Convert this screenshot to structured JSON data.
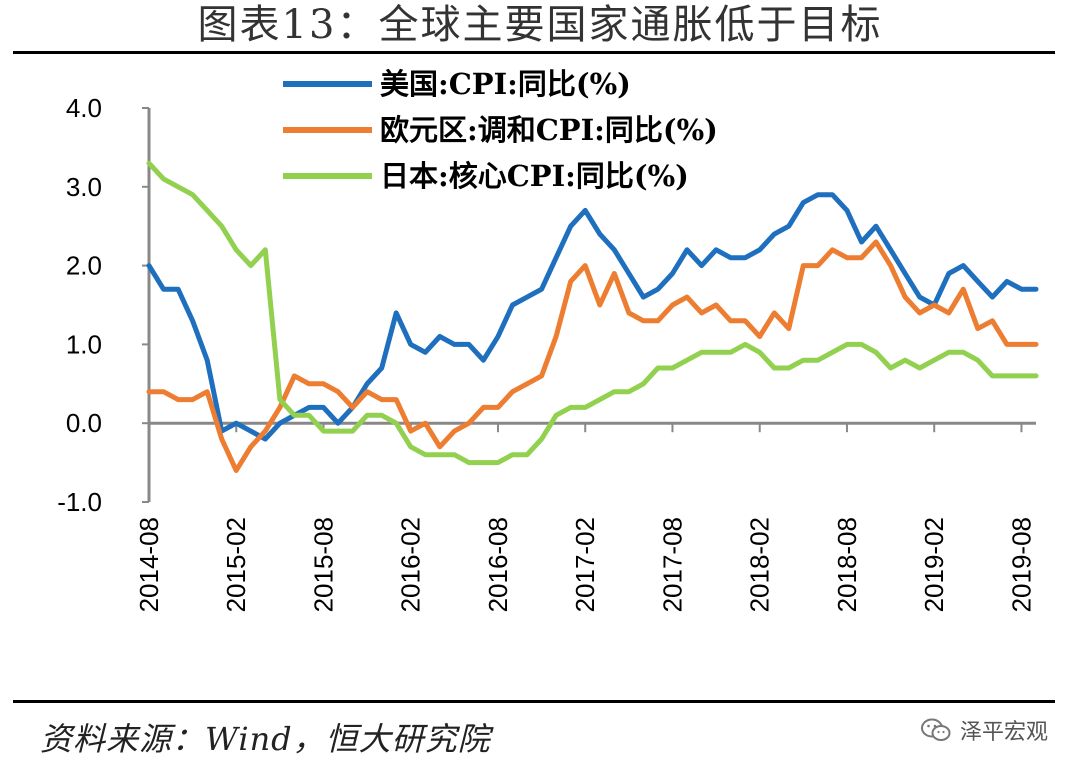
{
  "title": "图表13：全球主要国家通胀低于目标",
  "source": "资料来源：Wind，恒大研究院",
  "watermark": {
    "text": "泽平宏观",
    "icon": "wechat-icon"
  },
  "chart_data": {
    "type": "line",
    "title": "",
    "xlabel": "",
    "ylabel": "",
    "ylim": [
      -1.0,
      4.0
    ],
    "yticks": [
      "4.0",
      "3.0",
      "2.0",
      "1.0",
      "0.0",
      "-1.0"
    ],
    "xticks": [
      "2014-08",
      "2015-02",
      "2015-08",
      "2016-02",
      "2016-08",
      "2017-02",
      "2017-08",
      "2018-02",
      "2018-08",
      "2019-02",
      "2019-08"
    ],
    "legend_position": "top",
    "grid": false,
    "x": [
      "2014-08",
      "2014-09",
      "2014-10",
      "2014-11",
      "2014-12",
      "2015-01",
      "2015-02",
      "2015-03",
      "2015-04",
      "2015-05",
      "2015-06",
      "2015-07",
      "2015-08",
      "2015-09",
      "2015-10",
      "2015-11",
      "2015-12",
      "2016-01",
      "2016-02",
      "2016-03",
      "2016-04",
      "2016-05",
      "2016-06",
      "2016-07",
      "2016-08",
      "2016-09",
      "2016-10",
      "2016-11",
      "2016-12",
      "2017-01",
      "2017-02",
      "2017-03",
      "2017-04",
      "2017-05",
      "2017-06",
      "2017-07",
      "2017-08",
      "2017-09",
      "2017-10",
      "2017-11",
      "2017-12",
      "2018-01",
      "2018-02",
      "2018-03",
      "2018-04",
      "2018-05",
      "2018-06",
      "2018-07",
      "2018-08",
      "2018-09",
      "2018-10",
      "2018-11",
      "2018-12",
      "2019-01",
      "2019-02",
      "2019-03",
      "2019-04",
      "2019-05",
      "2019-06",
      "2019-07",
      "2019-08",
      "2019-09"
    ],
    "series": [
      {
        "name": "美国:CPI:同比(%)",
        "color": "#1f6fbf",
        "values": [
          2.0,
          1.7,
          1.7,
          1.3,
          0.8,
          -0.1,
          0.0,
          -0.1,
          -0.2,
          0.0,
          0.1,
          0.2,
          0.2,
          0.0,
          0.2,
          0.5,
          0.7,
          1.4,
          1.0,
          0.9,
          1.1,
          1.0,
          1.0,
          0.8,
          1.1,
          1.5,
          1.6,
          1.7,
          2.1,
          2.5,
          2.7,
          2.4,
          2.2,
          1.9,
          1.6,
          1.7,
          1.9,
          2.2,
          2.0,
          2.2,
          2.1,
          2.1,
          2.2,
          2.4,
          2.5,
          2.8,
          2.9,
          2.9,
          2.7,
          2.3,
          2.5,
          2.2,
          1.9,
          1.6,
          1.5,
          1.9,
          2.0,
          1.8,
          1.6,
          1.8,
          1.7,
          1.7
        ]
      },
      {
        "name": "欧元区:调和CPI:同比(%)",
        "color": "#ed7d31",
        "values": [
          0.4,
          0.4,
          0.3,
          0.3,
          0.4,
          -0.2,
          -0.6,
          -0.3,
          -0.1,
          0.2,
          0.6,
          0.5,
          0.5,
          0.4,
          0.2,
          0.4,
          0.3,
          0.3,
          -0.1,
          0.0,
          -0.3,
          -0.1,
          0.0,
          0.2,
          0.2,
          0.4,
          0.5,
          0.6,
          1.1,
          1.8,
          2.0,
          1.5,
          1.9,
          1.4,
          1.3,
          1.3,
          1.5,
          1.6,
          1.4,
          1.5,
          1.3,
          1.3,
          1.1,
          1.4,
          1.2,
          2.0,
          2.0,
          2.2,
          2.1,
          2.1,
          2.3,
          2.0,
          1.6,
          1.4,
          1.5,
          1.4,
          1.7,
          1.2,
          1.3,
          1.0,
          1.0,
          1.0
        ]
      },
      {
        "name": "日本:核心CPI:同比(%)",
        "color": "#92d050",
        "values": [
          3.3,
          3.1,
          3.0,
          2.9,
          2.7,
          2.5,
          2.2,
          2.0,
          2.2,
          0.3,
          0.1,
          0.1,
          -0.1,
          -0.1,
          -0.1,
          0.1,
          0.1,
          0.0,
          -0.3,
          -0.4,
          -0.4,
          -0.4,
          -0.5,
          -0.5,
          -0.5,
          -0.4,
          -0.4,
          -0.2,
          0.1,
          0.2,
          0.2,
          0.3,
          0.4,
          0.4,
          0.5,
          0.7,
          0.7,
          0.8,
          0.9,
          0.9,
          0.9,
          1.0,
          0.9,
          0.7,
          0.7,
          0.8,
          0.8,
          0.9,
          1.0,
          1.0,
          0.9,
          0.7,
          0.8,
          0.7,
          0.8,
          0.9,
          0.9,
          0.8,
          0.6,
          0.6,
          0.6,
          0.6
        ]
      }
    ]
  }
}
